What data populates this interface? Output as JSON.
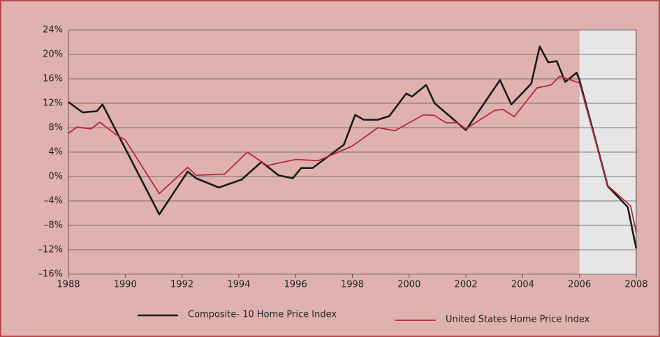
{
  "chart_data": {
    "type": "line",
    "xlim": [
      1988,
      2008
    ],
    "xticks": [
      1988,
      1990,
      1992,
      1994,
      1996,
      1998,
      2000,
      2002,
      2004,
      2006,
      2008
    ],
    "ylim": [
      -16,
      24
    ],
    "yticks": [
      {
        "value": -16,
        "label": "–16%"
      },
      {
        "value": -12,
        "label": "–12%"
      },
      {
        "value": -8,
        "label": "–8%"
      },
      {
        "value": -4,
        "label": "–4%"
      },
      {
        "value": 0,
        "label": "0%"
      },
      {
        "value": 4,
        "label": "4%"
      },
      {
        "value": 8,
        "label": "8%"
      },
      {
        "value": 12,
        "label": "12%"
      },
      {
        "value": 16,
        "label": "16%"
      },
      {
        "value": 20,
        "label": "20%"
      },
      {
        "value": 24,
        "label": "24%"
      }
    ],
    "grid": true,
    "legend": "bottom",
    "highlight": {
      "x": [
        2006,
        2008
      ],
      "color": "#e6e6e6"
    },
    "series": [
      {
        "name": "Composite- 10 Home Price Index",
        "color": "#1a1a1a",
        "x": [
          1988,
          1988.5,
          1989,
          1989.2,
          1991.2,
          1992.2,
          1992.5,
          1993.3,
          1994.1,
          1994.8,
          1995.4,
          1995.9,
          1996.2,
          1996.6,
          1997.7,
          1998.1,
          1998.4,
          1998.9,
          1999.3,
          1999.9,
          2000.1,
          2000.6,
          2000.9,
          2002.0,
          2003.2,
          2003.6,
          2004.3,
          2004.6,
          2004.9,
          2005.2,
          2005.5,
          2005.9,
          2006.0,
          2007.0,
          2007.7,
          2008.0
        ],
        "values": [
          12.2,
          10.5,
          10.7,
          11.8,
          -6.2,
          0.8,
          -0.3,
          -1.8,
          -0.5,
          2.4,
          0.2,
          -0.3,
          1.4,
          1.4,
          5.2,
          10.1,
          9.3,
          9.3,
          9.9,
          13.6,
          13.1,
          15.0,
          12.0,
          7.6,
          15.8,
          11.8,
          15.2,
          21.3,
          18.7,
          18.9,
          15.5,
          17.0,
          15.8,
          -1.6,
          -5.0,
          -11.8
        ]
      },
      {
        "name": "United States Home Price Index",
        "color": "#b5283a",
        "x": [
          1988,
          1988.3,
          1988.8,
          1989.1,
          1989.7,
          1990.0,
          1991.2,
          1992.2,
          1992.5,
          1993.5,
          1994.3,
          1995.0,
          1996.0,
          1996.8,
          1998.0,
          1998.9,
          1999.5,
          2000.5,
          2000.9,
          2001.3,
          2001.7,
          2002.0,
          2003.0,
          2003.3,
          2003.7,
          2004.5,
          2005.0,
          2005.3,
          2005.9,
          2006.0,
          2007.0,
          2007.8,
          2008.0
        ],
        "values": [
          7.1,
          8.1,
          7.8,
          8.9,
          6.8,
          6.0,
          -2.8,
          1.5,
          0.2,
          0.4,
          4.0,
          1.8,
          2.8,
          2.6,
          5.0,
          8.0,
          7.5,
          10.1,
          10.0,
          8.8,
          8.8,
          7.8,
          10.8,
          11.0,
          9.8,
          14.5,
          15.0,
          16.4,
          15.5,
          15.3,
          -1.5,
          -4.8,
          -9.2
        ]
      }
    ]
  }
}
